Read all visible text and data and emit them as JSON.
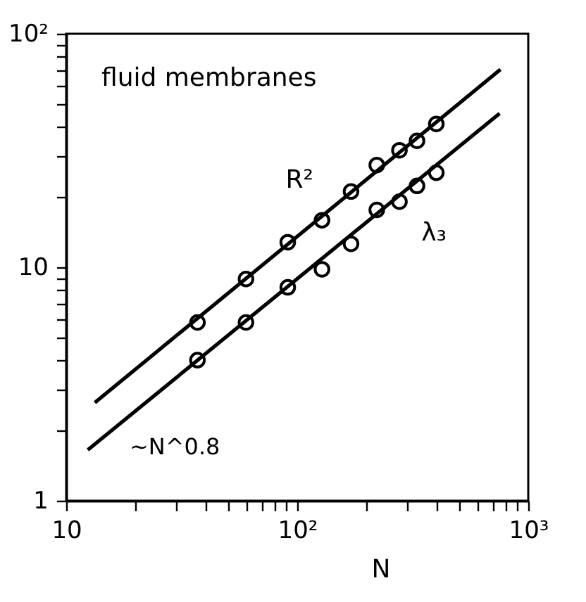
{
  "chart_data": {
    "type": "scatter",
    "title": "fluid membranes",
    "xlabel": "N",
    "log": "xy",
    "grid": false,
    "marker": "circle",
    "xlim": [
      10,
      1000
    ],
    "ylim": [
      1,
      100
    ],
    "xticks": [
      10,
      {
        "value": 20,
        "label": null
      },
      {
        "value": 30,
        "label": null
      },
      {
        "value": 40,
        "label": null
      },
      {
        "value": 50,
        "label": null
      },
      {
        "value": 60,
        "label": null
      },
      {
        "value": 70,
        "label": null
      },
      {
        "value": 80,
        "label": null
      },
      {
        "value": 90,
        "label": null
      },
      {
        "value": 100,
        "label": "10²"
      },
      {
        "value": 200,
        "label": null
      },
      {
        "value": 300,
        "label": null
      },
      {
        "value": 400,
        "label": null
      },
      {
        "value": 500,
        "label": null
      },
      {
        "value": 600,
        "label": null
      },
      {
        "value": 700,
        "label": null
      },
      {
        "value": 800,
        "label": null
      },
      {
        "value": 900,
        "label": null
      },
      {
        "value": 1000,
        "label": "10³"
      }
    ],
    "yticks": [
      1,
      {
        "value": 2,
        "label": null
      },
      {
        "value": 3,
        "label": null
      },
      {
        "value": 4,
        "label": null
      },
      {
        "value": 5,
        "label": null
      },
      {
        "value": 6,
        "label": null
      },
      {
        "value": 7,
        "label": null
      },
      {
        "value": 8,
        "label": null
      },
      {
        "value": 9,
        "label": null
      },
      10,
      {
        "value": 20,
        "label": null
      },
      {
        "value": 30,
        "label": null
      },
      {
        "value": 40,
        "label": null
      },
      {
        "value": 50,
        "label": null
      },
      {
        "value": 60,
        "label": null
      },
      {
        "value": 70,
        "label": null
      },
      {
        "value": 80,
        "label": null
      },
      {
        "value": 90,
        "label": null
      },
      {
        "value": 100,
        "label": "10²"
      }
    ],
    "series": [
      {
        "type": "scatter",
        "name": "R²",
        "color": "#000000",
        "x": [
          37,
          60,
          91,
          128,
          171,
          221,
          277,
          330,
          400
        ],
        "values": [
          5.8,
          8.9,
          12.8,
          15.9,
          21.1,
          27.4,
          31.7,
          34.8,
          41.1
        ]
      },
      {
        "type": "scatter",
        "name": "λ₃",
        "color": "#000000",
        "x": [
          37,
          60,
          91,
          128,
          171,
          221,
          277,
          330,
          400
        ],
        "values": [
          4.0,
          5.8,
          8.2,
          9.8,
          12.6,
          17.6,
          19.1,
          22.3,
          25.4
        ]
      },
      {
        "type": "line",
        "color": "#000000",
        "marker": "none",
        "line_style": "solid",
        "x": [
          13.3,
          758
        ],
        "values": [
          2.63,
          70.3
        ]
      },
      {
        "type": "line",
        "color": "#000000",
        "marker": "none",
        "line_style": "solid",
        "x": [
          12.4,
          752
        ],
        "values": [
          1.65,
          45.6
        ]
      }
    ],
    "annotations": [
      "~N^0.8"
    ]
  }
}
